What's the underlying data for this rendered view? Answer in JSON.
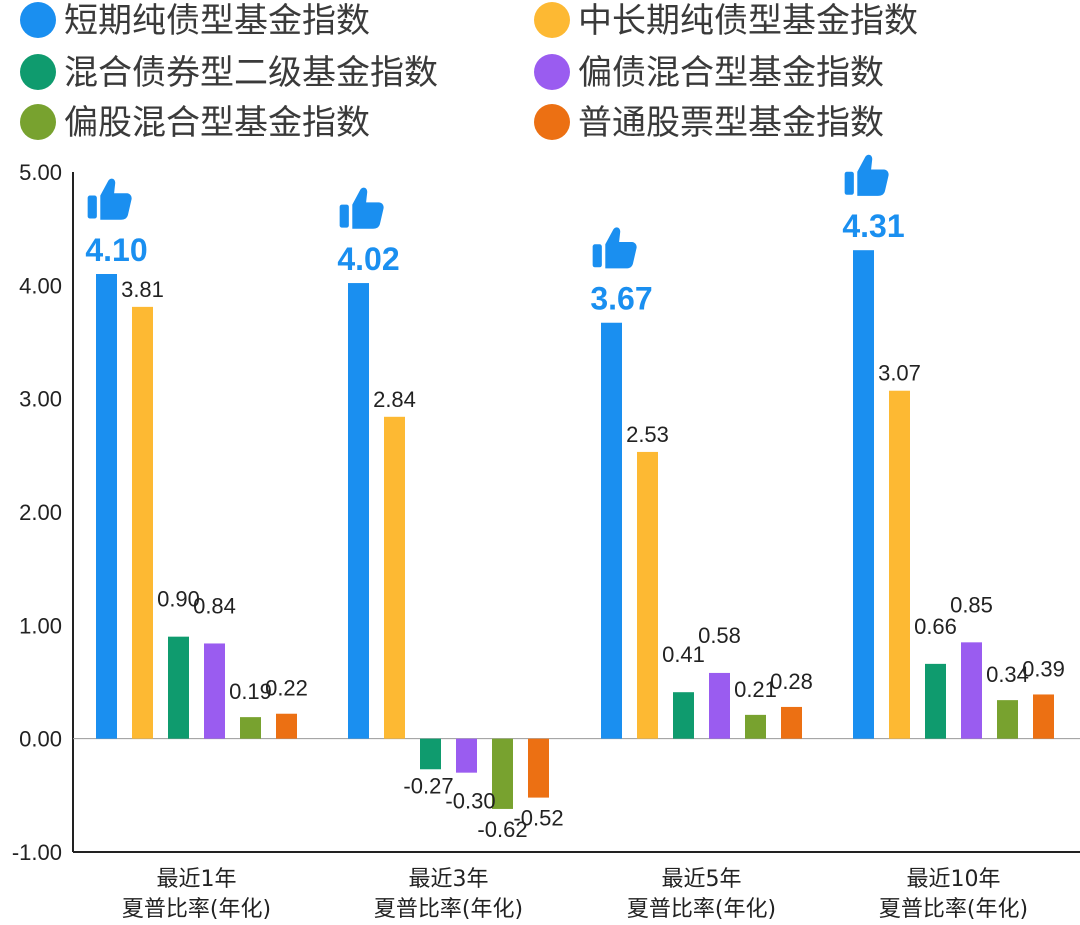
{
  "chart_data": {
    "type": "bar",
    "categories": [
      [
        "最近1年",
        "夏普比率(年化)"
      ],
      [
        "最近3年",
        "夏普比率(年化)"
      ],
      [
        "最近5年",
        "夏普比率(年化)"
      ],
      [
        "最近10年",
        "夏普比率(年化)"
      ]
    ],
    "series": [
      {
        "name": "短期纯债型基金指数",
        "color": "#1a8ff0",
        "values": [
          4.1,
          4.02,
          3.67,
          4.31
        ],
        "labels": [
          "4.10",
          "4.02",
          "3.67",
          "4.31"
        ]
      },
      {
        "name": "中长期纯债型基金指数",
        "color": "#fdb933",
        "values": [
          3.81,
          2.84,
          2.53,
          3.07
        ],
        "labels": [
          "3.81",
          "2.84",
          "2.53",
          "3.07"
        ]
      },
      {
        "name": "混合债券型二级基金指数",
        "color": "#0f9b6e",
        "values": [
          0.9,
          -0.27,
          0.41,
          0.66
        ],
        "labels": [
          "0.90",
          "-0.27",
          "0.41",
          "0.66"
        ]
      },
      {
        "name": "偏债混合型基金指数",
        "color": "#9a5cf0",
        "values": [
          0.84,
          -0.3,
          0.58,
          0.85
        ],
        "labels": [
          "0.84",
          "-0.30",
          "0.58",
          "0.85"
        ]
      },
      {
        "name": "偏股混合型基金指数",
        "color": "#78a22f",
        "values": [
          0.19,
          -0.62,
          0.21,
          0.34
        ],
        "labels": [
          "0.19",
          "-0.62",
          "0.21",
          "0.34"
        ]
      },
      {
        "name": "普通股票型基金指数",
        "color": "#ec7013",
        "values": [
          0.22,
          -0.52,
          0.28,
          0.39
        ],
        "labels": [
          "0.22",
          "-0.52",
          "0.28",
          "0.39"
        ]
      }
    ],
    "yticks": [
      "5.00",
      "4.00",
      "3.00",
      "2.00",
      "1.00",
      "0.00",
      "-1.00"
    ],
    "ylim": [
      -1,
      5
    ],
    "legend_position": "top",
    "grid": false,
    "highlight_series": 0,
    "highlight_icon": "thumbs-up-icon",
    "highlight_color": "#1a8ff0"
  }
}
